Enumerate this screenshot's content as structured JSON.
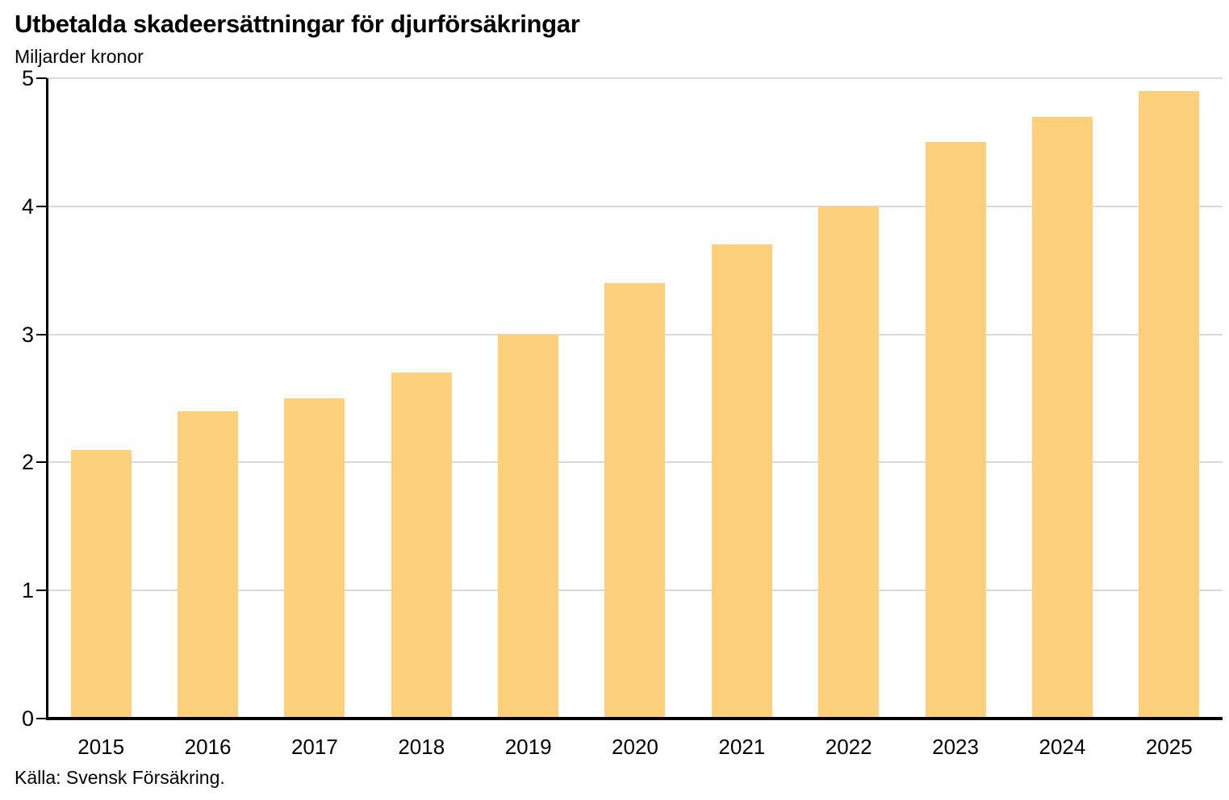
{
  "header": {
    "title": "Utbetalda skadeersättningar för djurförsäkringar",
    "subtitle": "Miljarder kronor"
  },
  "source": "Källa: Svensk Försäkring.",
  "colors": {
    "bar": "#FDD07C",
    "gridline": "#D9D9D9",
    "axis": "#000000",
    "text": "#000000"
  },
  "chart_data": {
    "type": "bar",
    "title": "Utbetalda skadeersättningar för djurförsäkringar",
    "subtitle": "Miljarder kronor",
    "categories": [
      "2015",
      "2016",
      "2017",
      "2018",
      "2019",
      "2020",
      "2021",
      "2022",
      "2023",
      "2024",
      "2025"
    ],
    "values": [
      2.1,
      2.4,
      2.5,
      2.7,
      3.0,
      3.4,
      3.7,
      4.0,
      4.5,
      4.7,
      4.9
    ],
    "xlabel": "",
    "ylabel": "Miljarder kronor",
    "ylim": [
      0,
      5
    ],
    "yticks": [
      0,
      1,
      2,
      3,
      4,
      5
    ],
    "grid": true,
    "legend": false,
    "source": "Källa: Svensk Försäkring."
  }
}
